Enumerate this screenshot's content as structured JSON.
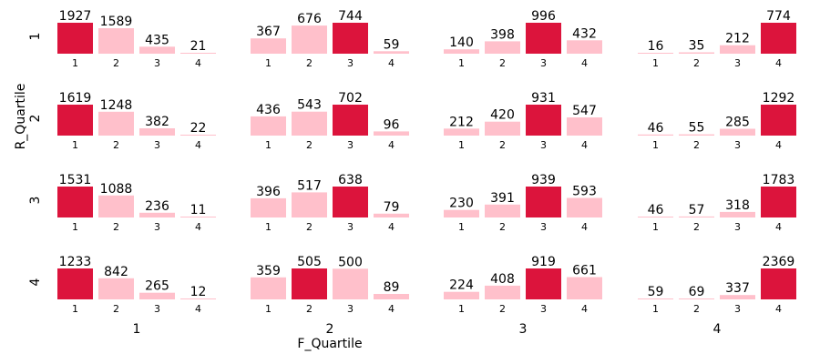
{
  "chart_data": {
    "type": "bar",
    "layout": "small-multiples grid",
    "xlabel": "F_Quartile",
    "ylabel": "R_Quartile",
    "rows": [
      "1",
      "2",
      "3",
      "4"
    ],
    "columns": [
      "1",
      "2",
      "3",
      "4"
    ],
    "categories": [
      "1",
      "2",
      "3",
      "4"
    ],
    "colors": {
      "highlight": "#dc143c",
      "normal": "#ffc0cb"
    },
    "panels": [
      [
        [
          1927,
          1589,
          435,
          21
        ],
        [
          367,
          676,
          744,
          59
        ],
        [
          140,
          398,
          996,
          432
        ],
        [
          16,
          35,
          212,
          774
        ]
      ],
      [
        [
          1619,
          1248,
          382,
          22
        ],
        [
          436,
          543,
          702,
          96
        ],
        [
          212,
          420,
          931,
          547
        ],
        [
          46,
          55,
          285,
          1292
        ]
      ],
      [
        [
          1531,
          1088,
          236,
          11
        ],
        [
          396,
          517,
          638,
          79
        ],
        [
          230,
          391,
          939,
          593
        ],
        [
          46,
          57,
          318,
          1783
        ]
      ],
      [
        [
          1233,
          842,
          265,
          12
        ],
        [
          359,
          505,
          500,
          89
        ],
        [
          224,
          408,
          919,
          661
        ],
        [
          59,
          69,
          337,
          2369
        ]
      ]
    ]
  }
}
